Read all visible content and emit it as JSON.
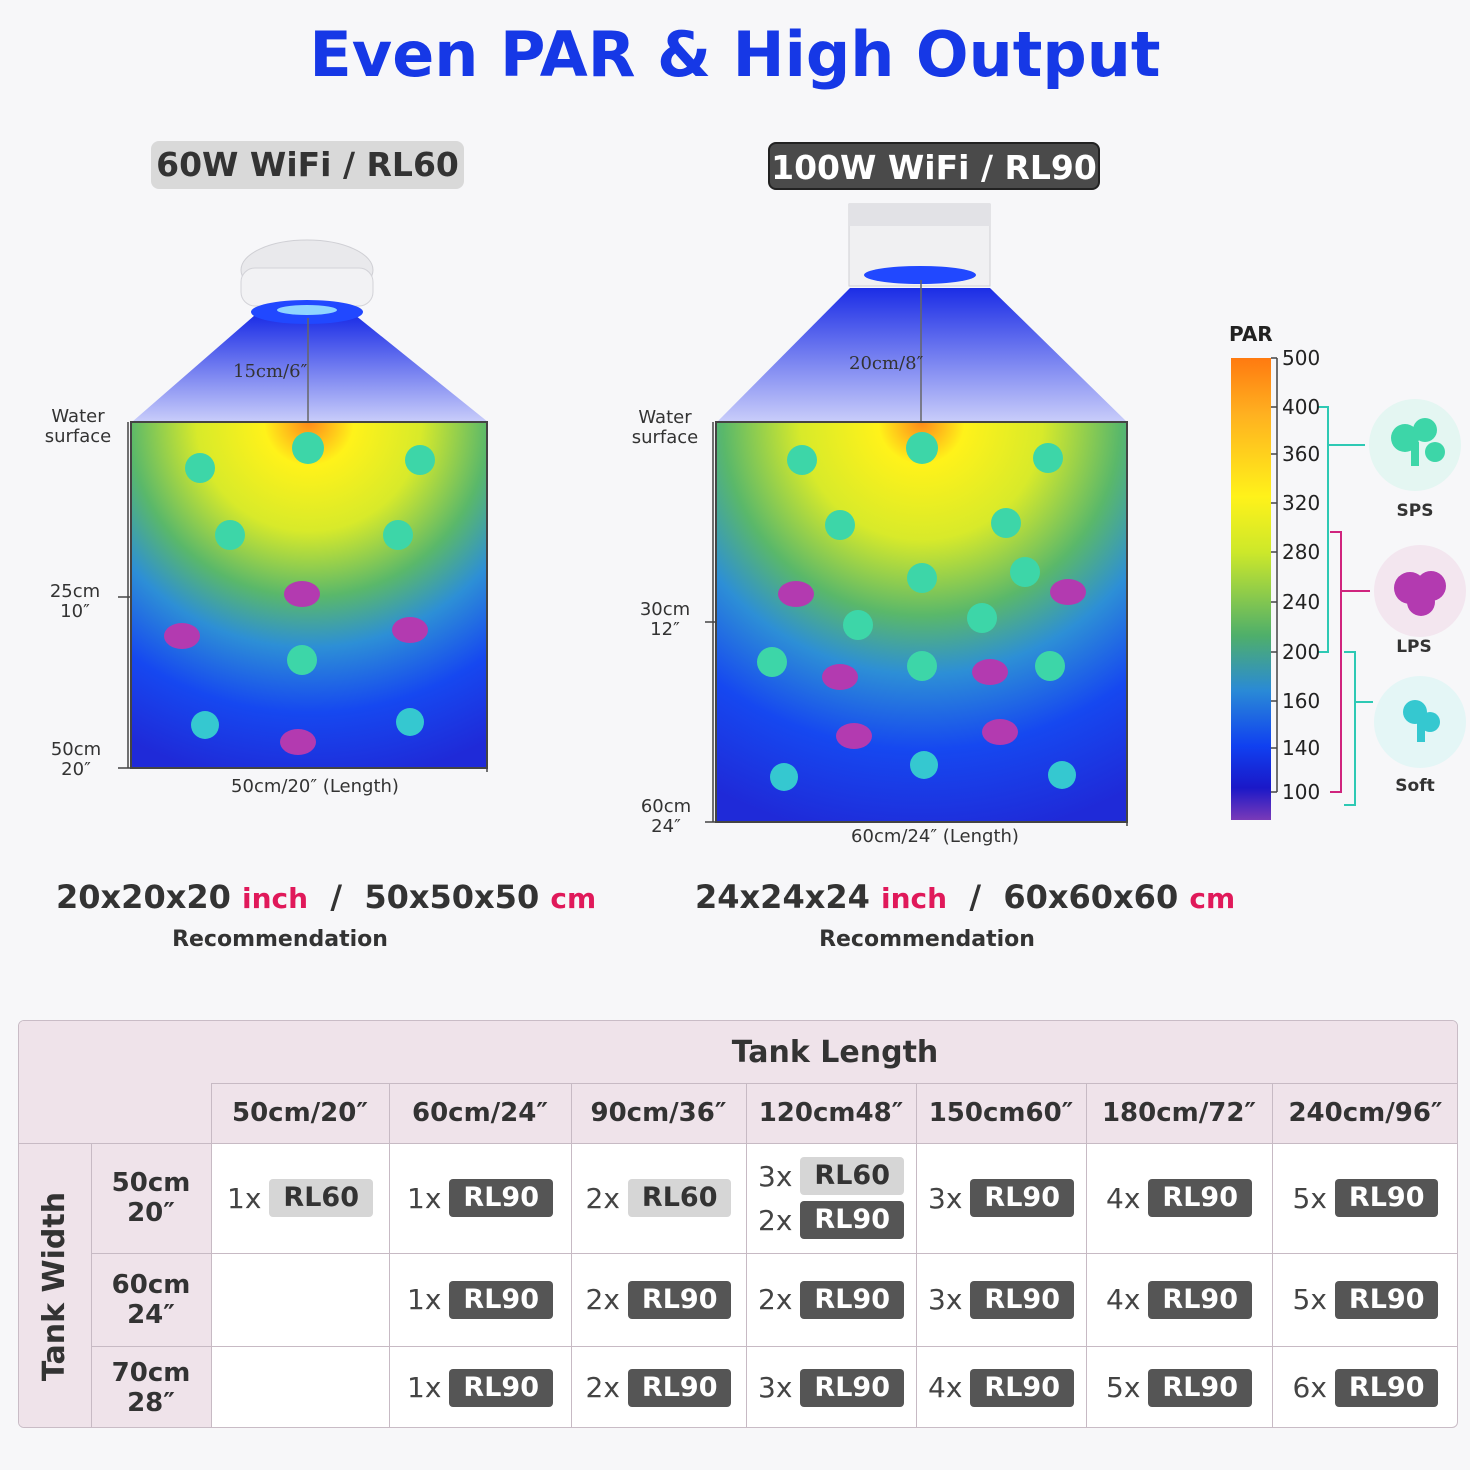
{
  "title": "Even PAR & High Output",
  "left_panel": {
    "model": "60W WiFi / RL60",
    "height_label": "15cm/6″",
    "water_surface": [
      "Water",
      "surface"
    ],
    "depth_mid": [
      "25cm",
      "10″"
    ],
    "depth_bottom": [
      "50cm",
      "20″"
    ],
    "length_label": "50cm/20″ (Length)",
    "dims_inch_value": "20x20x20",
    "dims_inch_unit": "inch",
    "dims_sep": "/",
    "dims_cm_value": "50x50x50",
    "dims_cm_unit": "cm",
    "recommendation": "Recommendation"
  },
  "right_panel": {
    "model": "100W WiFi / RL90",
    "height_label": "20cm/8″",
    "water_surface": [
      "Water",
      "surface"
    ],
    "depth_mid": [
      "30cm",
      "12″"
    ],
    "depth_bottom": [
      "60cm",
      "24″"
    ],
    "length_label": "60cm/24″ (Length)",
    "dims_inch_value": "24x24x24",
    "dims_inch_unit": "inch",
    "dims_sep": "/",
    "dims_cm_value": "60x60x60",
    "dims_cm_unit": "cm",
    "recommendation": "Recommendation"
  },
  "par_scale": {
    "label": "PAR",
    "ticks": [
      "500",
      "400",
      "360",
      "320",
      "280",
      "240",
      "200",
      "160",
      "140",
      "100"
    ],
    "corals": [
      "SPS",
      "LPS",
      "Soft"
    ],
    "colors": {
      "sps": "#2ec9b4",
      "lps": "#d0247e",
      "soft": "#2ec9b4"
    }
  },
  "table": {
    "header": "Tank Length",
    "side_header": "Tank Width",
    "columns": [
      "50cm/20″",
      "60cm/24″",
      "90cm/36″",
      "120cm48″",
      "150cm60″",
      "180cm/72″",
      "240cm/96″"
    ],
    "rows": [
      {
        "width": [
          "50cm",
          "20″"
        ],
        "cells": [
          [
            {
              "qty": "1x",
              "model": "RL60",
              "style": "light"
            }
          ],
          [
            {
              "qty": "1x",
              "model": "RL90",
              "style": "dark"
            }
          ],
          [
            {
              "qty": "2x",
              "model": "RL60",
              "style": "light"
            }
          ],
          [
            {
              "qty": "3x",
              "model": "RL60",
              "style": "light"
            },
            {
              "qty": "2x",
              "model": "RL90",
              "style": "dark"
            }
          ],
          [
            {
              "qty": "3x",
              "model": "RL90",
              "style": "dark"
            }
          ],
          [
            {
              "qty": "4x",
              "model": "RL90",
              "style": "dark"
            }
          ],
          [
            {
              "qty": "5x",
              "model": "RL90",
              "style": "dark"
            }
          ]
        ]
      },
      {
        "width": [
          "60cm",
          "24″"
        ],
        "cells": [
          [],
          [
            {
              "qty": "1x",
              "model": "RL90",
              "style": "dark"
            }
          ],
          [
            {
              "qty": "2x",
              "model": "RL90",
              "style": "dark"
            }
          ],
          [
            {
              "qty": "2x",
              "model": "RL90",
              "style": "dark"
            }
          ],
          [
            {
              "qty": "3x",
              "model": "RL90",
              "style": "dark"
            }
          ],
          [
            {
              "qty": "4x",
              "model": "RL90",
              "style": "dark"
            }
          ],
          [
            {
              "qty": "5x",
              "model": "RL90",
              "style": "dark"
            }
          ]
        ]
      },
      {
        "width": [
          "70cm",
          "28″"
        ],
        "cells": [
          [],
          [
            {
              "qty": "1x",
              "model": "RL90",
              "style": "dark"
            }
          ],
          [
            {
              "qty": "2x",
              "model": "RL90",
              "style": "dark"
            }
          ],
          [
            {
              "qty": "3x",
              "model": "RL90",
              "style": "dark"
            }
          ],
          [
            {
              "qty": "4x",
              "model": "RL90",
              "style": "dark"
            }
          ],
          [
            {
              "qty": "5x",
              "model": "RL90",
              "style": "dark"
            }
          ],
          [
            {
              "qty": "6x",
              "model": "RL90",
              "style": "dark"
            }
          ]
        ]
      }
    ]
  }
}
